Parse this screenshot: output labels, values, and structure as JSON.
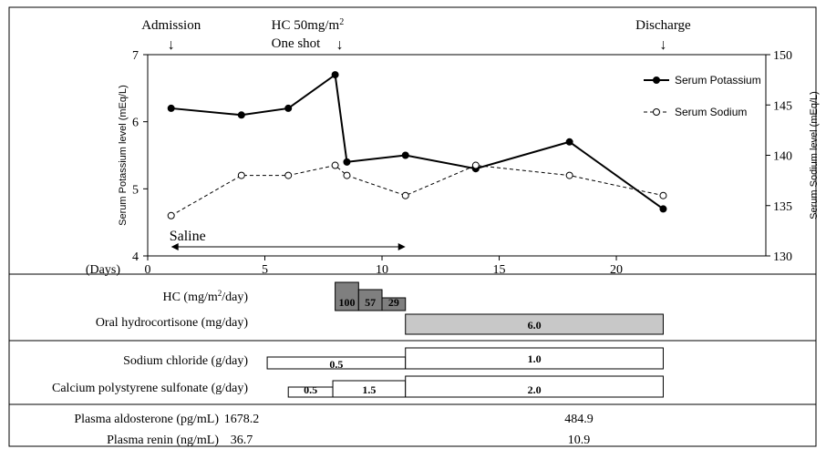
{
  "chart_data": {
    "type": "line",
    "x_label": "(Days)",
    "x_ticks": [
      0,
      5,
      10,
      15,
      20
    ],
    "xlim": [
      0,
      23.5
    ],
    "y_left": {
      "label": "Serum Potassium level (mEq/L)",
      "ticks": [
        4,
        5,
        6,
        7
      ],
      "range": [
        4,
        7
      ]
    },
    "y_right": {
      "label": "Serum Sodium level (mEq/L)",
      "ticks": [
        130,
        135,
        140,
        145,
        150
      ],
      "range": [
        130,
        150
      ]
    },
    "series": [
      {
        "name": "Serum Potassium",
        "axis": "left",
        "marker": "filled",
        "line": "solid",
        "x": [
          1,
          4,
          6,
          8,
          8.5,
          11,
          14,
          18,
          22
        ],
        "y": [
          6.2,
          6.1,
          6.2,
          6.7,
          5.4,
          5.5,
          5.3,
          5.7,
          4.7
        ]
      },
      {
        "name": "Serum Sodium",
        "axis": "right",
        "marker": "open",
        "line": "dashed",
        "x": [
          1,
          4,
          6,
          8,
          8.5,
          11,
          14,
          18,
          22
        ],
        "y": [
          134,
          138,
          138,
          139,
          138,
          136,
          139,
          138,
          136
        ]
      }
    ],
    "annotations": [
      {
        "label": "Admission",
        "x": 1
      },
      {
        "label": "HC 50mg/m",
        "sup": "2",
        "label2": "One shot",
        "x": 8
      },
      {
        "label": "Discharge",
        "x": 22
      }
    ],
    "saline": {
      "label": "Saline",
      "x_start": 1,
      "x_end": 11
    },
    "treatments": {
      "hc_iv": {
        "label": "HC (mg/m",
        "sup": "2",
        "label_end": "/day)",
        "segments": [
          {
            "x_start": 8,
            "x_end": 9,
            "value": "100"
          },
          {
            "x_start": 9,
            "x_end": 10,
            "value": "57"
          },
          {
            "x_start": 10,
            "x_end": 11,
            "value": "29"
          }
        ]
      },
      "oral_hc": {
        "label": "Oral hydrocortisone (mg/day)",
        "segments": [
          {
            "x_start": 11,
            "x_end": 22,
            "value": "6.0"
          }
        ]
      },
      "sodium_chloride": {
        "label": "Sodium chloride (g/day)",
        "segments": [
          {
            "x_start": 5.1,
            "x_end": 11,
            "value": "0.5"
          },
          {
            "x_start": 11,
            "x_end": 22,
            "value": "1.0"
          }
        ]
      },
      "calcium_polystyrene": {
        "label": "Calcium polystyrene sulfonate (g/day)",
        "segments": [
          {
            "x_start": 6,
            "x_end": 7.9,
            "value": "0.5"
          },
          {
            "x_start": 7.9,
            "x_end": 11,
            "value": "1.5"
          },
          {
            "x_start": 11,
            "x_end": 22,
            "value": "2.0"
          }
        ]
      }
    },
    "labs": [
      {
        "label": "Plasma aldosterone (pg/mL)",
        "values": [
          "1678.2",
          "484.9"
        ]
      },
      {
        "label": "Plasma renin (ng/mL)",
        "values": [
          "36.7",
          "10.9"
        ]
      }
    ]
  }
}
